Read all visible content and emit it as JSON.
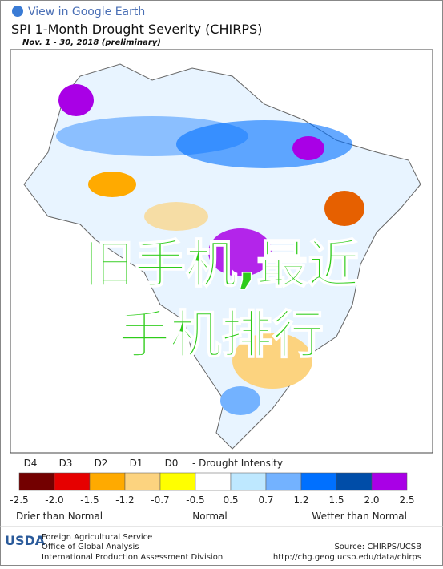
{
  "header": {
    "link": "View in Google Earth",
    "title": "SPI 1-Month Drought Severity (CHIRPS)",
    "subtitle": "Nov. 1 - 30, 2018 (preliminary)"
  },
  "overlay": {
    "lines": [
      "旧手机,最近",
      "手机排行"
    ]
  },
  "legend": {
    "categories": [
      "D4",
      "D3",
      "D2",
      "D1",
      "D0"
    ],
    "title": "- Drought Intensity",
    "colors": [
      "#730000",
      "#e60000",
      "#ffaa00",
      "#fcd37f",
      "#ffff00",
      "#ffffff",
      "#bee8ff",
      "#73b2ff",
      "#0070ff",
      "#004da8",
      "#a900e6"
    ],
    "ticks": [
      "-2.5",
      "-2.0",
      "-1.5",
      "-1.2",
      "-0.7",
      "-0.5",
      "0.5",
      "0.7",
      "1.2",
      "1.5",
      "2.0",
      "2.5"
    ],
    "left_label": "Drier than Normal",
    "center_label": "Normal",
    "right_label": "Wetter than Normal"
  },
  "footer": {
    "logo": "USDA",
    "agency": [
      "Foreign Agricultural Service",
      "Office of Global Analysis",
      "International Production Assessment Division"
    ],
    "source": "Source: CHIRPS/UCSB",
    "url": "http://chg.geog.ucsb.edu/data/chirps"
  }
}
